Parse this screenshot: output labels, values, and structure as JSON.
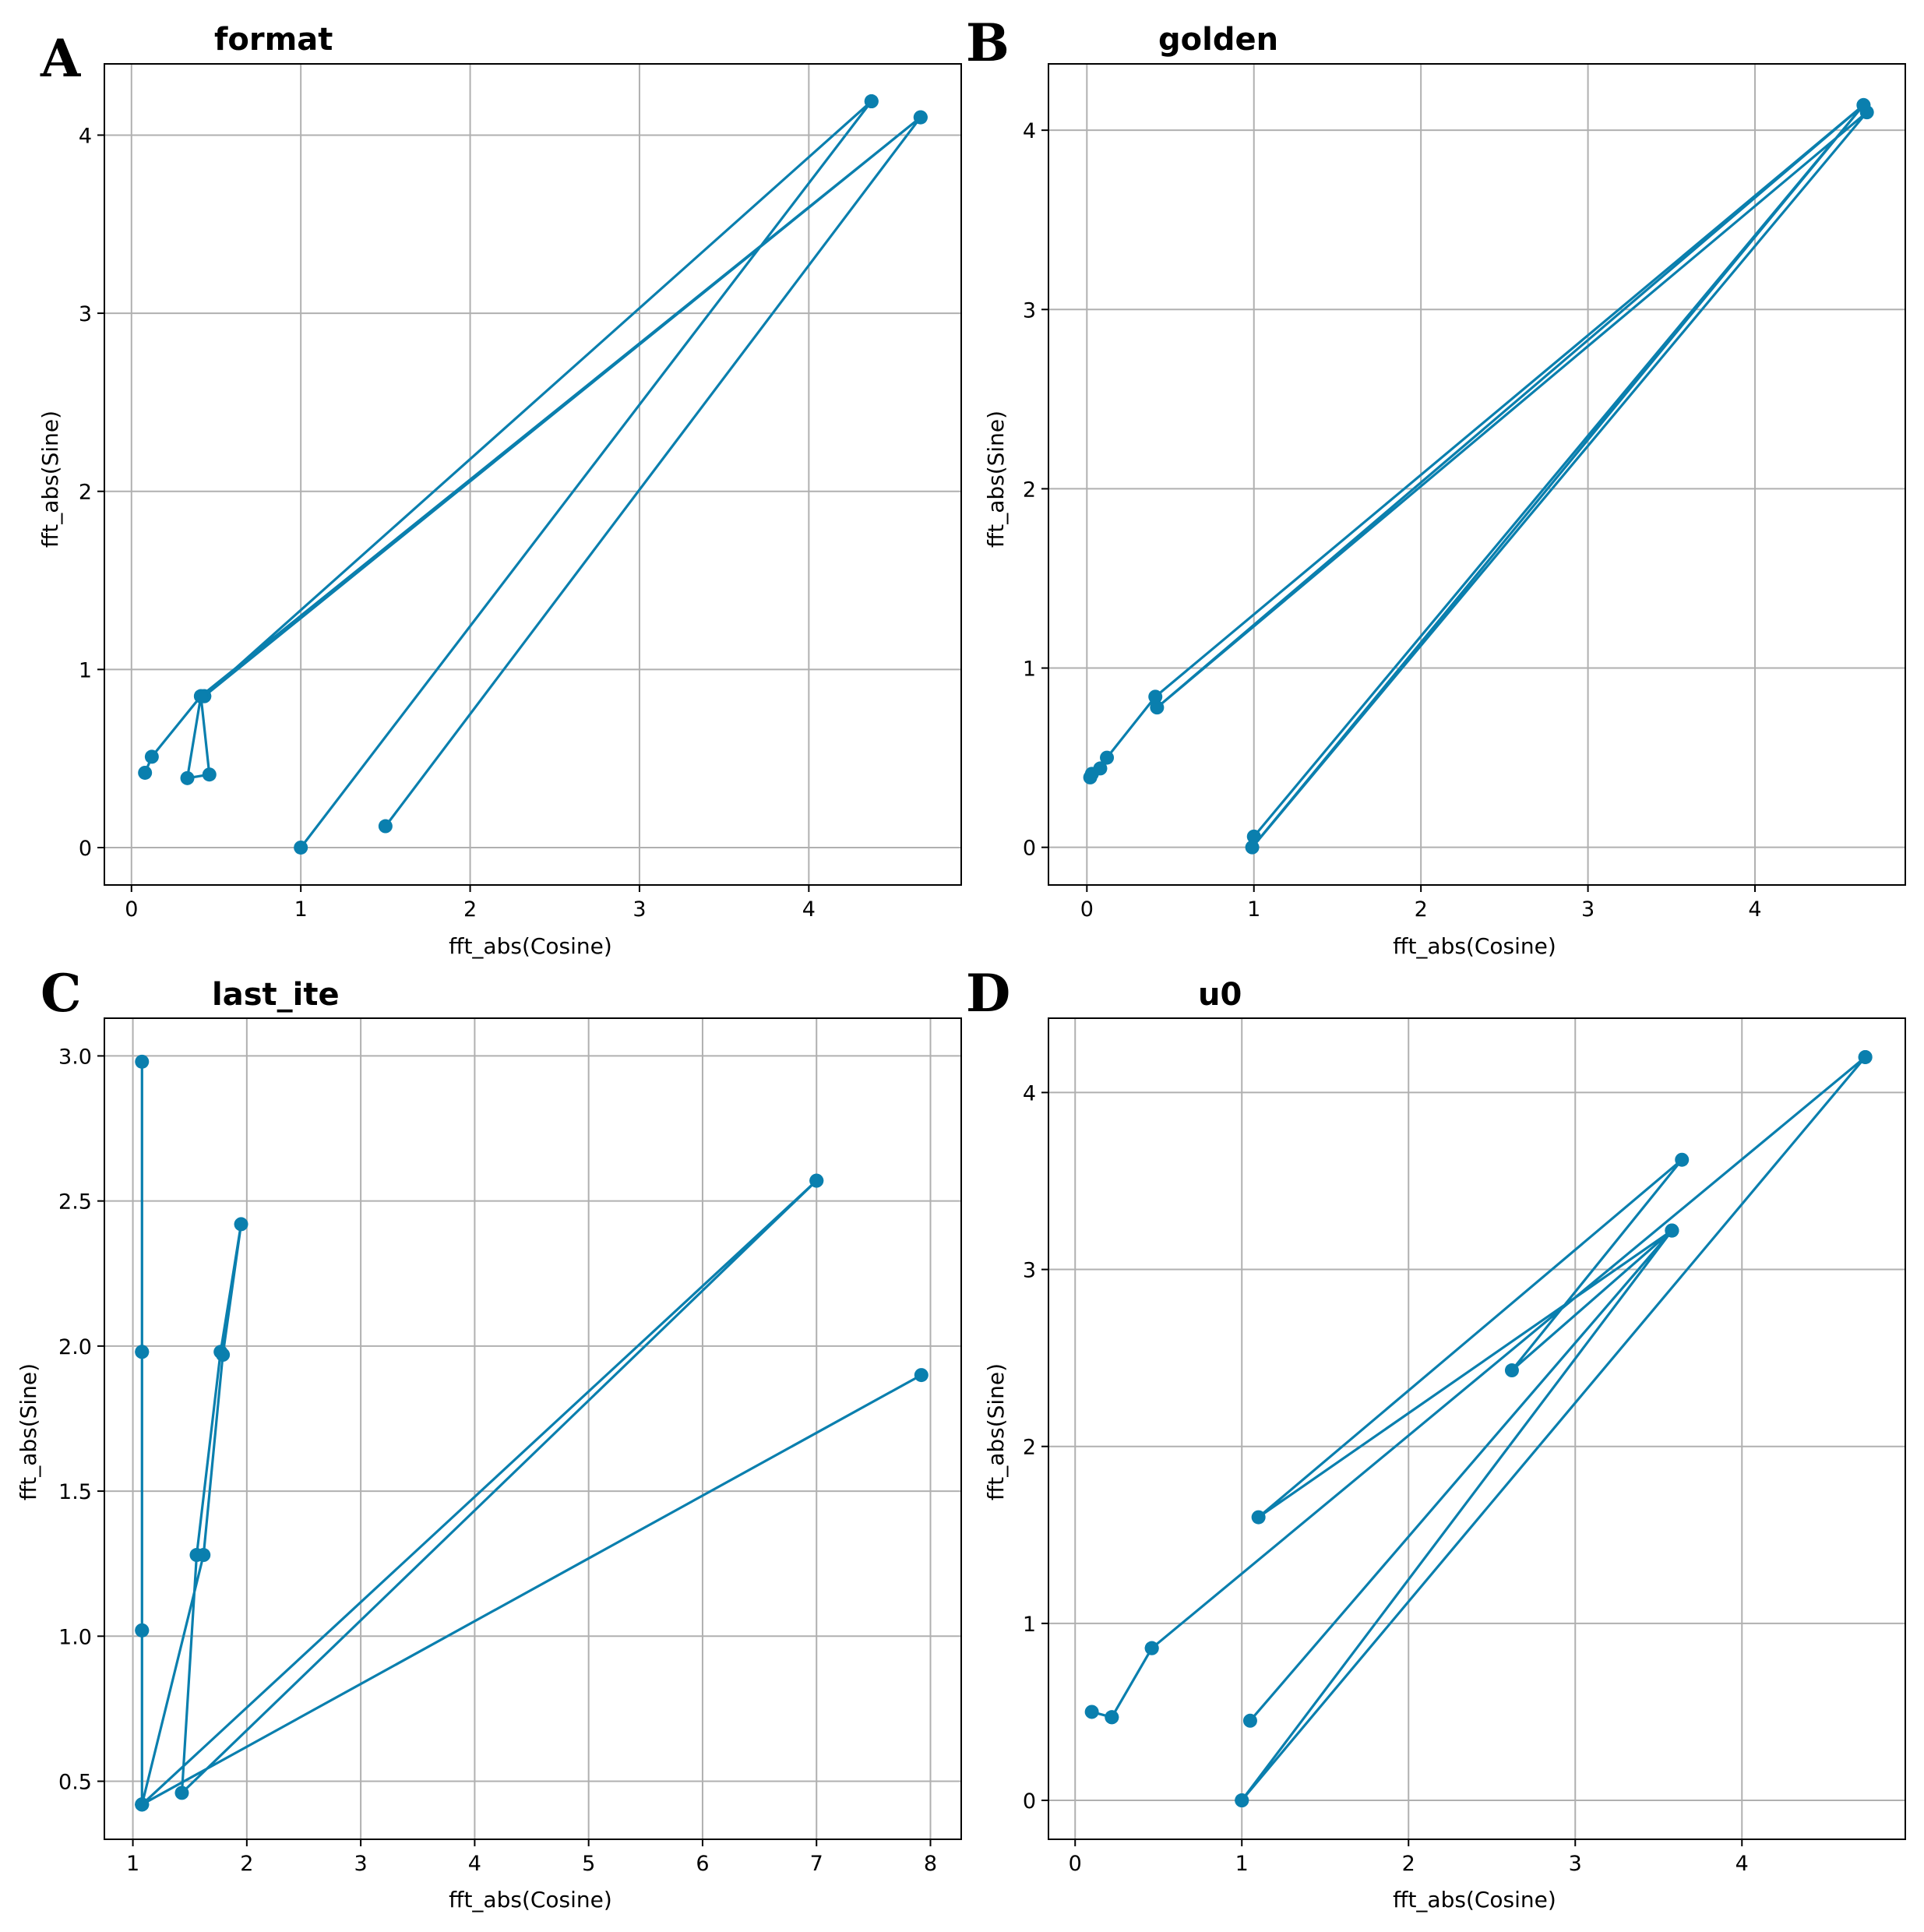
{
  "figure": {
    "series_color": "#0a7fae"
  },
  "chart_data": [
    {
      "type": "line",
      "panel_label": "A",
      "title": "format",
      "xlabel": "fft_abs(Cosine)",
      "ylabel": "fft_abs(Sine)",
      "xlim": [
        -0.16,
        4.9
      ],
      "ylim": [
        -0.21,
        4.4
      ],
      "xticks": [
        0,
        1,
        2,
        3,
        4
      ],
      "xtick_labels": [
        "0",
        "1",
        "2",
        "3",
        "4"
      ],
      "yticks": [
        0,
        1,
        2,
        3,
        4
      ],
      "ytick_labels": [
        "0",
        "1",
        "2",
        "3",
        "4"
      ],
      "grid": true,
      "series": [
        {
          "name": "format",
          "marker": "o",
          "x": [
            1.5,
            4.66,
            0.43,
            4.37,
            1.0,
            4.37,
            0.43,
            4.66,
            0.41,
            0.33,
            0.46,
            0.41,
            0.12,
            0.08
          ],
          "y": [
            0.12,
            4.1,
            0.85,
            4.19,
            0.0,
            4.19,
            0.85,
            4.1,
            0.85,
            0.39,
            0.41,
            0.85,
            0.51,
            0.42
          ]
        }
      ]
    },
    {
      "type": "line",
      "panel_label": "B",
      "title": "golden",
      "xlabel": "fft_abs(Cosine)",
      "ylabel": "fft_abs(Sine)",
      "xlim": [
        -0.23,
        4.9
      ],
      "ylim": [
        -0.21,
        4.37
      ],
      "xticks": [
        0,
        1,
        2,
        3,
        4
      ],
      "xtick_labels": [
        "0",
        "1",
        "2",
        "3",
        "4"
      ],
      "yticks": [
        0,
        1,
        2,
        3,
        4
      ],
      "ytick_labels": [
        "0",
        "1",
        "2",
        "3",
        "4"
      ],
      "grid": true,
      "series": [
        {
          "name": "golden",
          "marker": "o",
          "x": [
            1.0,
            4.65,
            0.42,
            4.67,
            0.99,
            4.65,
            0.41,
            0.12,
            0.08,
            0.02,
            0.03
          ],
          "y": [
            0.06,
            4.14,
            0.78,
            4.1,
            0.0,
            4.14,
            0.84,
            0.5,
            0.44,
            0.39,
            0.41
          ]
        }
      ]
    },
    {
      "type": "line",
      "panel_label": "C",
      "title": "last_ite",
      "xlabel": "fft_abs(Cosine)",
      "ylabel": "fft_abs(Sine)",
      "xlim": [
        0.75,
        8.27
      ],
      "ylim": [
        0.3,
        3.13
      ],
      "xticks": [
        1,
        2,
        3,
        4,
        5,
        6,
        7,
        8
      ],
      "xtick_labels": [
        "1",
        "2",
        "3",
        "4",
        "5",
        "6",
        "7",
        "8"
      ],
      "yticks": [
        0.5,
        1.0,
        1.5,
        2.0,
        2.5,
        3.0
      ],
      "ytick_labels": [
        "0.5",
        "1.0",
        "1.5",
        "2.0",
        "2.5",
        "3.0"
      ],
      "grid": true,
      "series": [
        {
          "name": "last_ite",
          "marker": "o",
          "x": [
            7.92,
            1.08,
            7.0,
            1.43,
            1.56,
            1.77,
            1.95,
            1.79,
            1.62,
            1.08,
            1.08,
            1.08,
            1.08,
            1.08,
            1.08,
            1.08,
            1.08,
            7.0
          ],
          "y": [
            1.9,
            0.42,
            2.57,
            0.46,
            1.28,
            1.98,
            2.42,
            1.97,
            1.28,
            0.42,
            1.02,
            1.98,
            2.98,
            1.98,
            1.02,
            0.42,
            0.42,
            2.57
          ]
        }
      ]
    },
    {
      "type": "line",
      "panel_label": "D",
      "title": "u0",
      "xlabel": "fft_abs(Cosine)",
      "ylabel": "fft_abs(Sine)",
      "xlim": [
        -0.16,
        4.98
      ],
      "ylim": [
        -0.22,
        4.42
      ],
      "xticks": [
        0,
        1,
        2,
        3,
        4
      ],
      "xtick_labels": [
        "0",
        "1",
        "2",
        "3",
        "4"
      ],
      "yticks": [
        0,
        1,
        2,
        3,
        4
      ],
      "ytick_labels": [
        "0",
        "1",
        "2",
        "3",
        "4"
      ],
      "grid": true,
      "series": [
        {
          "name": "u0",
          "marker": "o",
          "x": [
            1.05,
            3.58,
            1.0,
            4.74,
            0.46,
            0.22,
            0.1,
            0.22,
            0.46,
            4.74,
            1.0,
            3.58,
            1.1,
            3.64,
            2.62,
            3.58
          ],
          "y": [
            0.45,
            3.22,
            0.0,
            4.2,
            0.86,
            0.47,
            0.5,
            0.47,
            0.86,
            4.2,
            0.0,
            3.22,
            1.6,
            3.62,
            2.43,
            3.22
          ]
        }
      ]
    }
  ]
}
